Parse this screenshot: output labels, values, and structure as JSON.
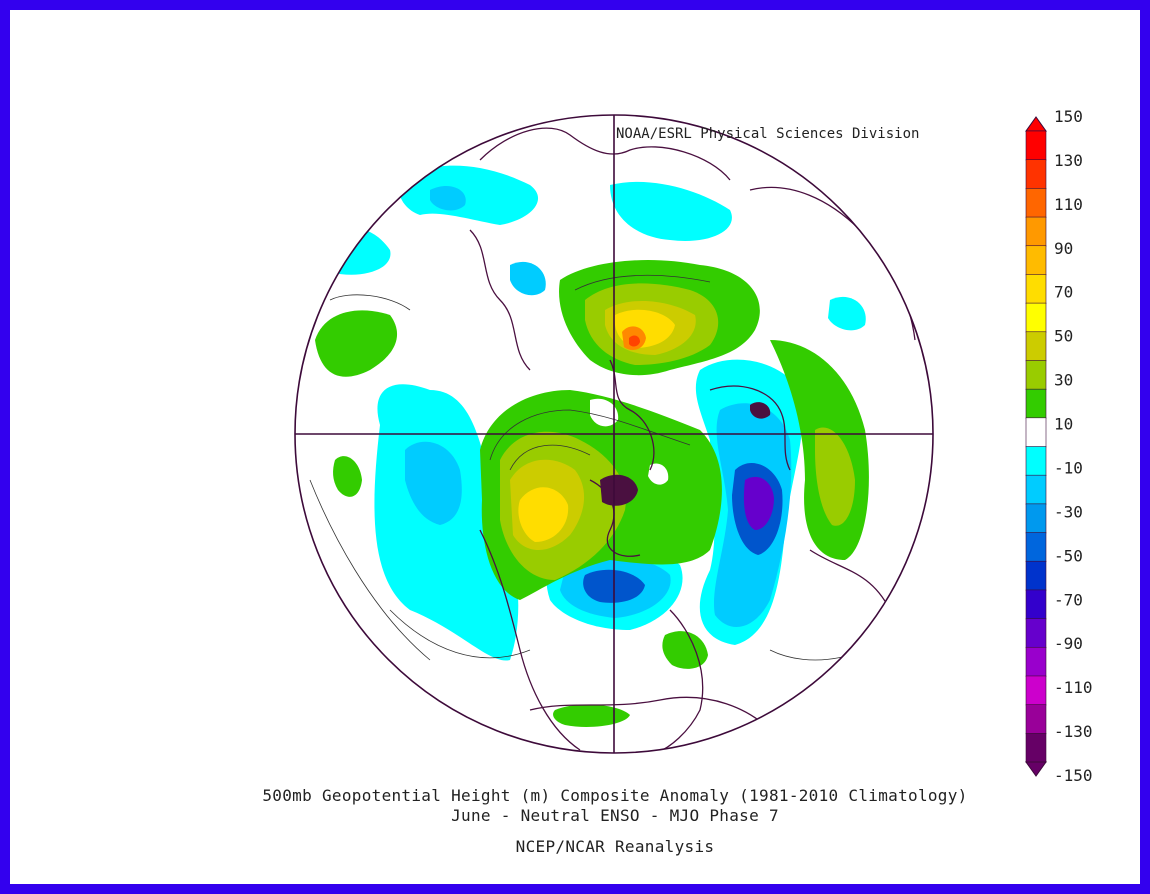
{
  "credit": "NOAA/ESRL Physical Sciences Division",
  "caption": {
    "line1": "500mb Geopotential Height (m) Composite Anomaly (1981-2010 Climatology)",
    "line2": "June - Neutral ENSO - MJO Phase 7",
    "line3": "NCEP/NCAR Reanalysis"
  },
  "colorbar": {
    "labels": [
      "150",
      "130",
      "110",
      "90",
      "70",
      "50",
      "30",
      "10",
      "-10",
      "-30",
      "-50",
      "-70",
      "-90",
      "-110",
      "-130",
      "-150"
    ],
    "colors": [
      "#ff0000",
      "#ff3300",
      "#ff6600",
      "#ff9900",
      "#ffbb00",
      "#ffdd00",
      "#ffff00",
      "#cccc00",
      "#99cc00",
      "#33cc00",
      "#ffffff",
      "#00ffff",
      "#00ccff",
      "#0099ee",
      "#0066dd",
      "#0033cc",
      "#3300cc",
      "#6600cc",
      "#9900cc",
      "#cc00cc",
      "#990099",
      "#660066"
    ]
  },
  "palette": {
    "pos10": "#33cc00",
    "pos30": "#99cc00",
    "pos50": "#cccc00",
    "pos70": "#ffdd00",
    "pos90": "#ffbb00",
    "pos110": "#ff8800",
    "pos130": "#ff4400",
    "neg10": "#00ffff",
    "neg30": "#00ccff",
    "neg50": "#0099ee",
    "neg70": "#0055cc",
    "neg90": "#2222cc",
    "neg110": "#6600cc",
    "neg130": "#9900cc",
    "land": "#4a1040",
    "frame": "#3300ee"
  }
}
